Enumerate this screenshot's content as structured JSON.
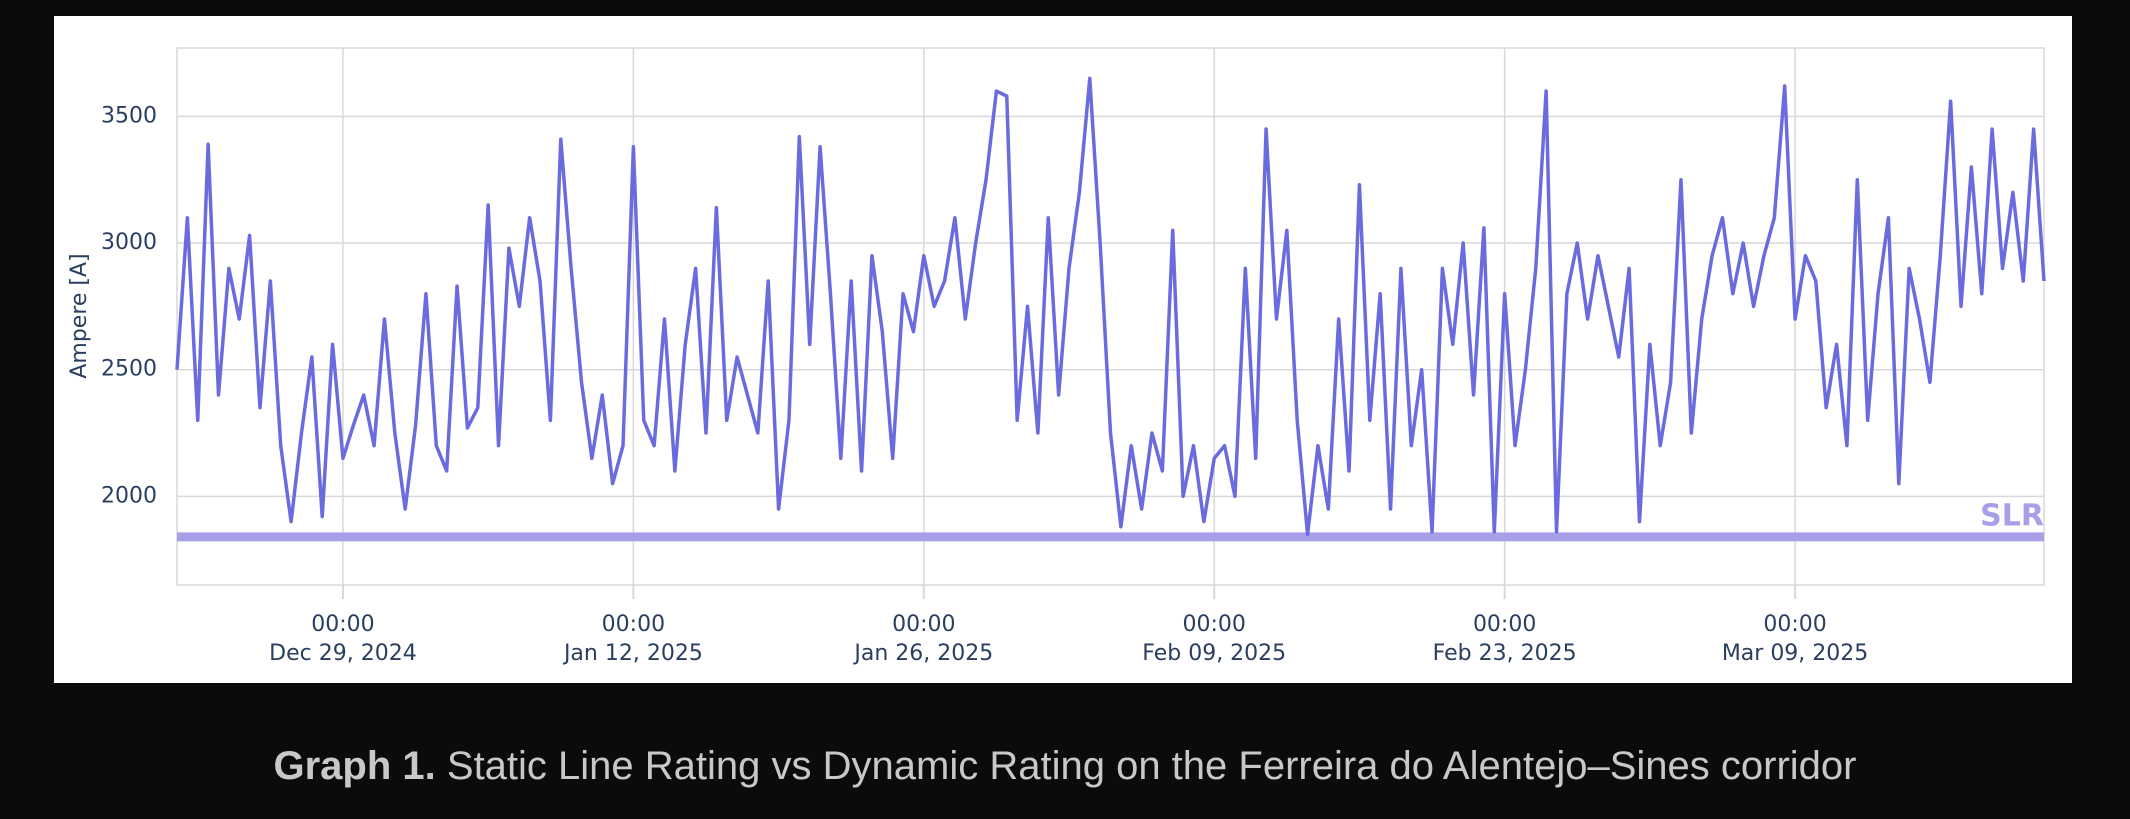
{
  "chart_data": {
    "type": "line",
    "ylabel": "Ampere [A]",
    "x": [
      "2024-12-21 00:00",
      "2024-12-21 12:00",
      "2024-12-22 00:00",
      "2024-12-22 12:00",
      "2024-12-23 00:00",
      "2024-12-23 12:00",
      "2024-12-24 00:00",
      "2024-12-24 12:00",
      "2024-12-25 00:00",
      "2024-12-25 12:00",
      "2024-12-26 00:00",
      "2024-12-26 12:00",
      "2024-12-27 00:00",
      "2024-12-27 12:00",
      "2024-12-28 00:00",
      "2024-12-28 12:00",
      "2024-12-29 00:00",
      "2024-12-29 12:00",
      "2024-12-30 00:00",
      "2024-12-30 12:00",
      "2024-12-31 00:00",
      "2024-12-31 12:00",
      "2025-01-01 00:00",
      "2025-01-01 12:00",
      "2025-01-02 00:00",
      "2025-01-02 12:00",
      "2025-01-03 00:00",
      "2025-01-03 12:00",
      "2025-01-04 00:00",
      "2025-01-04 12:00",
      "2025-01-05 00:00",
      "2025-01-05 12:00",
      "2025-01-06 00:00",
      "2025-01-06 12:00",
      "2025-01-07 00:00",
      "2025-01-07 12:00",
      "2025-01-08 00:00",
      "2025-01-08 12:00",
      "2025-01-09 00:00",
      "2025-01-09 12:00",
      "2025-01-10 00:00",
      "2025-01-10 12:00",
      "2025-01-11 00:00",
      "2025-01-11 12:00",
      "2025-01-12 00:00",
      "2025-01-12 12:00",
      "2025-01-13 00:00",
      "2025-01-13 12:00",
      "2025-01-14 00:00",
      "2025-01-14 12:00",
      "2025-01-15 00:00",
      "2025-01-15 12:00",
      "2025-01-16 00:00",
      "2025-01-16 12:00",
      "2025-01-17 00:00",
      "2025-01-17 12:00",
      "2025-01-18 00:00",
      "2025-01-18 12:00",
      "2025-01-19 00:00",
      "2025-01-19 12:00",
      "2025-01-20 00:00",
      "2025-01-20 12:00",
      "2025-01-21 00:00",
      "2025-01-21 12:00",
      "2025-01-22 00:00",
      "2025-01-22 12:00",
      "2025-01-23 00:00",
      "2025-01-23 12:00",
      "2025-01-24 00:00",
      "2025-01-24 12:00",
      "2025-01-25 00:00",
      "2025-01-25 12:00",
      "2025-01-26 00:00",
      "2025-01-26 12:00",
      "2025-01-27 00:00",
      "2025-01-27 12:00",
      "2025-01-28 00:00",
      "2025-01-28 12:00",
      "2025-01-29 00:00",
      "2025-01-29 12:00",
      "2025-01-30 00:00",
      "2025-01-30 12:00",
      "2025-01-31 00:00",
      "2025-01-31 12:00",
      "2025-02-01 00:00",
      "2025-02-01 12:00",
      "2025-02-02 00:00",
      "2025-02-02 12:00",
      "2025-02-03 00:00",
      "2025-02-03 12:00",
      "2025-02-04 00:00",
      "2025-02-04 12:00",
      "2025-02-05 00:00",
      "2025-02-05 12:00",
      "2025-02-06 00:00",
      "2025-02-06 12:00",
      "2025-02-07 00:00",
      "2025-02-07 12:00",
      "2025-02-08 00:00",
      "2025-02-08 12:00",
      "2025-02-09 00:00",
      "2025-02-09 12:00",
      "2025-02-10 00:00",
      "2025-02-10 12:00",
      "2025-02-11 00:00",
      "2025-02-11 12:00",
      "2025-02-12 00:00",
      "2025-02-12 12:00",
      "2025-02-13 00:00",
      "2025-02-13 12:00",
      "2025-02-14 00:00",
      "2025-02-14 12:00",
      "2025-02-15 00:00",
      "2025-02-15 12:00",
      "2025-02-16 00:00",
      "2025-02-16 12:00",
      "2025-02-17 00:00",
      "2025-02-17 12:00",
      "2025-02-18 00:00",
      "2025-02-18 12:00",
      "2025-02-19 00:00",
      "2025-02-19 12:00",
      "2025-02-20 00:00",
      "2025-02-20 12:00",
      "2025-02-21 00:00",
      "2025-02-21 12:00",
      "2025-02-22 00:00",
      "2025-02-22 12:00",
      "2025-02-23 00:00",
      "2025-02-23 12:00",
      "2025-02-24 00:00",
      "2025-02-24 12:00",
      "2025-02-25 00:00",
      "2025-02-25 12:00",
      "2025-02-26 00:00",
      "2025-02-26 12:00",
      "2025-02-27 00:00",
      "2025-02-27 12:00",
      "2025-02-28 00:00",
      "2025-02-28 12:00",
      "2025-03-01 00:00",
      "2025-03-01 12:00",
      "2025-03-02 00:00",
      "2025-03-02 12:00",
      "2025-03-03 00:00",
      "2025-03-03 12:00",
      "2025-03-04 00:00",
      "2025-03-04 12:00",
      "2025-03-05 00:00",
      "2025-03-05 12:00",
      "2025-03-06 00:00",
      "2025-03-06 12:00",
      "2025-03-07 00:00",
      "2025-03-07 12:00",
      "2025-03-08 00:00",
      "2025-03-08 12:00",
      "2025-03-09 00:00",
      "2025-03-09 12:00",
      "2025-03-10 00:00",
      "2025-03-10 12:00",
      "2025-03-11 00:00",
      "2025-03-11 12:00",
      "2025-03-12 00:00",
      "2025-03-12 12:00",
      "2025-03-13 00:00",
      "2025-03-13 12:00",
      "2025-03-14 00:00",
      "2025-03-14 12:00",
      "2025-03-15 00:00",
      "2025-03-15 12:00",
      "2025-03-16 00:00",
      "2025-03-16 12:00",
      "2025-03-17 00:00",
      "2025-03-17 12:00",
      "2025-03-18 00:00",
      "2025-03-18 12:00",
      "2025-03-19 00:00",
      "2025-03-19 12:00",
      "2025-03-20 00:00",
      "2025-03-20 12:00",
      "2025-03-21 00:00"
    ],
    "series": [
      {
        "color": "#6b6be0",
        "values": [
          2500,
          3100,
          2300,
          3390,
          2400,
          2900,
          2700,
          3030,
          2350,
          2850,
          2200,
          1900,
          2250,
          2550,
          1920,
          2600,
          2150,
          2280,
          2400,
          2200,
          2700,
          2250,
          1950,
          2280,
          2800,
          2200,
          2100,
          2830,
          2270,
          2350,
          3150,
          2200,
          2980,
          2750,
          3100,
          2850,
          2300,
          3410,
          2900,
          2450,
          2150,
          2400,
          2050,
          2200,
          3380,
          2300,
          2200,
          2700,
          2100,
          2600,
          2900,
          2250,
          3140,
          2300,
          2550,
          2400,
          2250,
          2850,
          1950,
          2300,
          3420,
          2600,
          3380,
          2800,
          2150,
          2850,
          2100,
          2950,
          2650,
          2150,
          2800,
          2650,
          2950,
          2750,
          2850,
          3100,
          2700,
          3000,
          3250,
          3600,
          3580,
          2300,
          2750,
          2250,
          3100,
          2400,
          2900,
          3200,
          3650,
          3000,
          2250,
          1880,
          2200,
          1950,
          2250,
          2100,
          3050,
          2000,
          2200,
          1900,
          2150,
          2200,
          2000,
          2900,
          2150,
          3450,
          2700,
          3050,
          2300,
          1850,
          2200,
          1950,
          2700,
          2100,
          3230,
          2300,
          2800,
          1950,
          2900,
          2200,
          2500,
          1860,
          2900,
          2600,
          3000,
          2400,
          3060,
          1860,
          2800,
          2200,
          2500,
          2900,
          3600,
          1860,
          2800,
          3000,
          2700,
          2950,
          2750,
          2550,
          2900,
          1900,
          2600,
          2200,
          2450,
          3250,
          2250,
          2700,
          2950,
          3100,
          2800,
          3000,
          2750,
          2950,
          3100,
          3620,
          2700,
          2950,
          2850,
          2350,
          2600,
          2200,
          3250,
          2300,
          2800,
          3100,
          2050,
          2900,
          2700,
          2450,
          2950,
          3560,
          2750,
          3300,
          2800,
          3450,
          2900,
          3200,
          2850,
          3450,
          2850
        ]
      }
    ],
    "reference_line": {
      "value": 1840,
      "label": "SLR",
      "color": "#a89fe9"
    },
    "xlim": [
      "2024-12-21 00:00",
      "2025-03-21 00:00"
    ],
    "xticks": [
      {
        "value": "2024-12-29 00:00",
        "label": [
          "00:00",
          "Dec 29, 2024"
        ]
      },
      {
        "value": "2025-01-12 00:00",
        "label": [
          "00:00",
          "Jan 12, 2025"
        ]
      },
      {
        "value": "2025-01-26 00:00",
        "label": [
          "00:00",
          "Jan 26, 2025"
        ]
      },
      {
        "value": "2025-02-09 00:00",
        "label": [
          "00:00",
          "Feb 09, 2025"
        ]
      },
      {
        "value": "2025-02-23 00:00",
        "label": [
          "00:00",
          "Feb 23, 2025"
        ]
      },
      {
        "value": "2025-03-09 00:00",
        "label": [
          "00:00",
          "Mar 09, 2025"
        ]
      }
    ],
    "ylim": [
      1650,
      3770
    ],
    "yticks": [
      2000,
      2500,
      3000,
      3500
    ],
    "grid": true
  },
  "caption": {
    "bold": "Graph 1.",
    "text": "Static Line Rating vs Dynamic Rating on the Ferreira do Alentejo–Sines corridor"
  }
}
